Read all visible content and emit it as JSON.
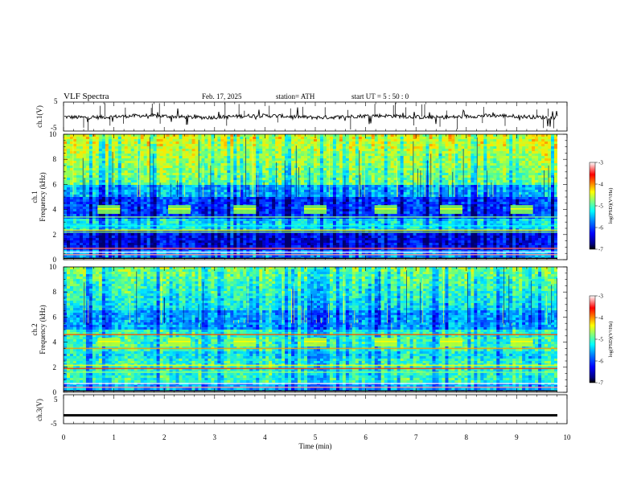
{
  "header": {
    "title": "VLF  Spectra",
    "date": "Feb. 17, 2025",
    "station": "station= ATH",
    "start": "start  UT  =   5  : 50 : 0"
  },
  "chart_data": [
    {
      "type": "line",
      "name": "ch1-waveform",
      "ylabel": "ch.1(V)",
      "ylim": [
        -5,
        5
      ],
      "yticks": [
        "5",
        "-5"
      ],
      "xlim": [
        0,
        10
      ],
      "description_values": {
        "baseline": 0,
        "typical_range": [
          -1,
          1
        ]
      }
    },
    {
      "type": "heatmap",
      "name": "ch1-spectrogram",
      "ylabel": "ch.1 Frequency (kHz)",
      "ylabel_lines": [
        "ch.1",
        "Frequency  (kHz)"
      ],
      "ylim": [
        0,
        10
      ],
      "yticks": [
        "0",
        "2",
        "4",
        "6",
        "8",
        "10"
      ],
      "xlim": [
        0,
        10
      ],
      "colorbar": {
        "label": "log(PSD)(V²/Hz)",
        "range": [
          -7,
          -3
        ],
        "ticks": [
          "-3",
          "-4",
          "-5",
          "-6",
          "-7"
        ]
      },
      "bursts_min": [
        0.9,
        2.3,
        3.6,
        5.0,
        6.4,
        7.7,
        9.1
      ],
      "burst_freq_khz": 4
    },
    {
      "type": "heatmap",
      "name": "ch2-spectrogram",
      "ylabel": "ch.2 Frequency (kHz)",
      "ylabel_lines": [
        "ch.2",
        "Frequency  (kHz)"
      ],
      "ylim": [
        0,
        10
      ],
      "yticks": [
        "0",
        "2",
        "4",
        "6",
        "8",
        "10"
      ],
      "xlim": [
        0,
        10
      ],
      "colorbar": {
        "label": "log(PSD)(V²/Hz)",
        "range": [
          -7,
          -3
        ],
        "ticks": [
          "-3",
          "-4",
          "-5",
          "-6",
          "-7"
        ]
      },
      "bursts_min": [
        0.9,
        2.3,
        3.6,
        5.0,
        6.4,
        7.7,
        9.1
      ],
      "burst_freq_khz": 4
    },
    {
      "type": "line",
      "name": "ch3-waveform",
      "ylabel": "ch.3(V)",
      "ylim": [
        -5,
        5
      ],
      "yticks": [
        "5",
        "-5"
      ],
      "xlim": [
        0,
        10
      ],
      "description_values": {
        "baseline": -2,
        "thickness_v": 0.6
      }
    }
  ],
  "xaxis": {
    "label": "Time  (min)",
    "ticks": [
      "0",
      "1",
      "2",
      "3",
      "4",
      "5",
      "6",
      "7",
      "8",
      "9",
      "10"
    ]
  },
  "colors": {
    "jet": [
      "#00007f",
      "#0000ff",
      "#007fff",
      "#00ffff",
      "#7fff7f",
      "#ffff00",
      "#ff7f00",
      "#ff0000",
      "#7f0000",
      "#ffffff"
    ]
  }
}
